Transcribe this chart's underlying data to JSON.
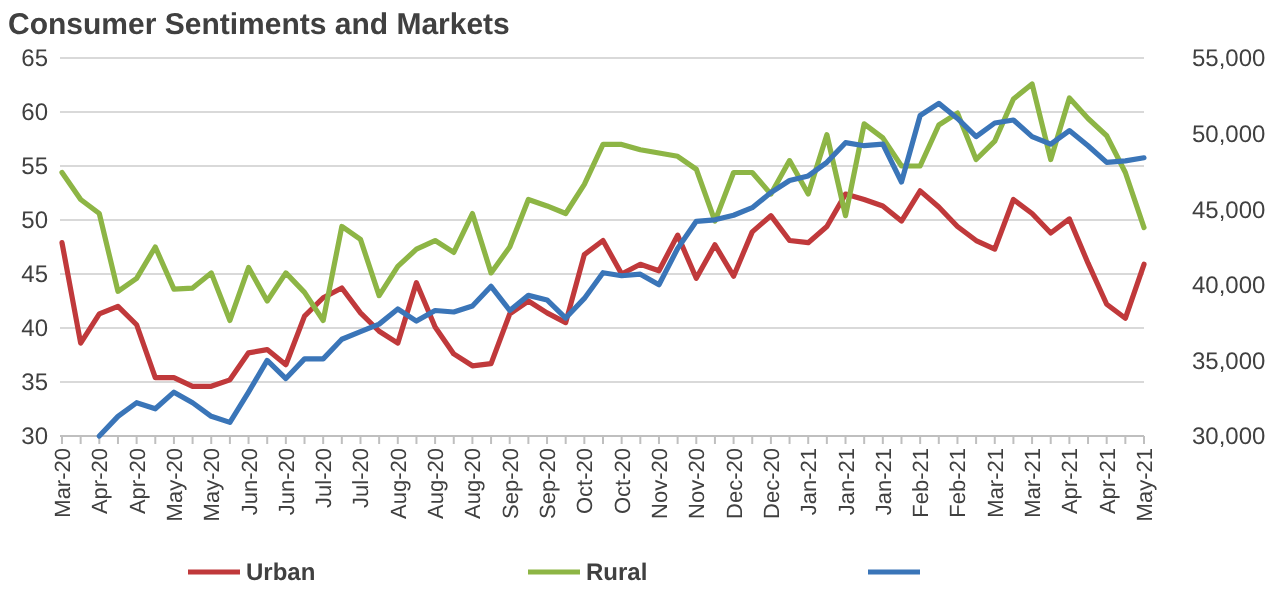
{
  "chart_data": {
    "type": "line",
    "title": "Consumer Sentiments and Markets",
    "categories": [
      "Mar-20",
      null,
      "Apr-20",
      null,
      "Apr-20",
      null,
      "May-20",
      null,
      "May-20",
      null,
      "Jun-20",
      null,
      "Jun-20",
      null,
      "Jul-20",
      null,
      "Jul-20",
      null,
      "Aug-20",
      null,
      "Aug-20",
      null,
      "Aug-20",
      null,
      "Sep-20",
      null,
      "Sep-20",
      null,
      "Oct-20",
      null,
      "Oct-20",
      null,
      "Nov-20",
      null,
      "Nov-20",
      null,
      "Dec-20",
      null,
      "Dec-20",
      null,
      "Jan-21",
      null,
      "Jan-21",
      null,
      "Jan-21",
      null,
      "Feb-21",
      null,
      "Feb-21",
      null,
      "Mar-21",
      null,
      "Mar-21",
      null,
      "Apr-21",
      null,
      "Apr-21",
      null,
      "May-21"
    ],
    "series": [
      {
        "name": "Urban",
        "color": "#c0393b",
        "values": [
          47.9,
          38.6,
          41.3,
          42.0,
          40.3,
          35.4,
          35.4,
          34.6,
          34.6,
          35.2,
          37.7,
          38.0,
          36.6,
          41.1,
          42.8,
          43.7,
          41.4,
          39.7,
          38.6,
          44.2,
          40.1,
          37.6,
          36.5,
          36.7,
          41.3,
          42.5,
          41.4,
          40.5,
          46.8,
          48.1,
          45.0,
          45.9,
          45.3,
          48.6,
          44.6,
          47.7,
          44.8,
          48.9,
          50.4,
          48.1,
          47.9,
          49.4,
          52.4,
          51.9,
          51.3,
          49.9,
          52.7,
          51.2,
          49.4,
          48.1,
          47.3,
          51.9,
          50.6,
          48.8,
          50.1,
          46.0,
          42.2,
          40.9,
          45.9
        ]
      },
      {
        "name": "Rural",
        "color": "#8db545",
        "values": [
          54.4,
          51.9,
          50.6,
          43.4,
          44.6,
          47.5,
          43.6,
          43.7,
          45.1,
          40.7,
          45.6,
          42.5,
          45.1,
          43.3,
          40.7,
          49.4,
          48.2,
          43.0,
          45.7,
          47.3,
          48.1,
          47.0,
          50.6,
          45.1,
          47.5,
          51.9,
          51.3,
          50.6,
          53.3,
          57.0,
          57.0,
          56.5,
          56.2,
          55.9,
          54.7,
          49.9,
          54.4,
          54.4,
          52.4,
          55.5,
          52.4,
          57.9,
          50.4,
          58.9,
          57.6,
          55.0,
          55.0,
          58.8,
          59.9,
          55.6,
          57.3,
          61.2,
          62.6,
          55.6,
          61.3,
          59.4,
          57.8,
          54.4,
          49.3
        ]
      },
      {
        "color": "#3a75b8",
        "axis": "y2",
        "values": [
          null,
          null,
          30000,
          31300,
          32200,
          31800,
          32900,
          32200,
          31300,
          30900,
          32900,
          35000,
          33800,
          35100,
          35100,
          36400,
          36900,
          37400,
          38400,
          37600,
          38300,
          38200,
          38600,
          39900,
          38300,
          39300,
          39000,
          37800,
          39100,
          40800,
          40600,
          40700,
          40000,
          42400,
          44200,
          44300,
          44600,
          45100,
          46100,
          46900,
          47200,
          48100,
          49400,
          49200,
          49300,
          46800,
          51200,
          52000,
          51000,
          49800,
          50700,
          50900,
          49800,
          49300,
          50200,
          49200,
          48100,
          48200,
          48400
        ]
      }
    ],
    "ylim": [
      30,
      65
    ],
    "yticks": [
      30,
      35,
      40,
      45,
      50,
      55,
      60,
      65
    ],
    "y2lim": [
      30000,
      55000
    ],
    "y2ticks": [
      {
        "value": 30000,
        "label": "30,000"
      },
      {
        "value": 35000,
        "label": "35,000"
      },
      {
        "value": 40000,
        "label": "40,000"
      },
      {
        "value": 45000,
        "label": "45,000"
      },
      {
        "value": 50000,
        "label": "50,000"
      },
      {
        "value": 55000,
        "label": "55,000"
      }
    ],
    "grid": "y",
    "legend": "bottom",
    "line_style": "solid",
    "marker": "none"
  }
}
